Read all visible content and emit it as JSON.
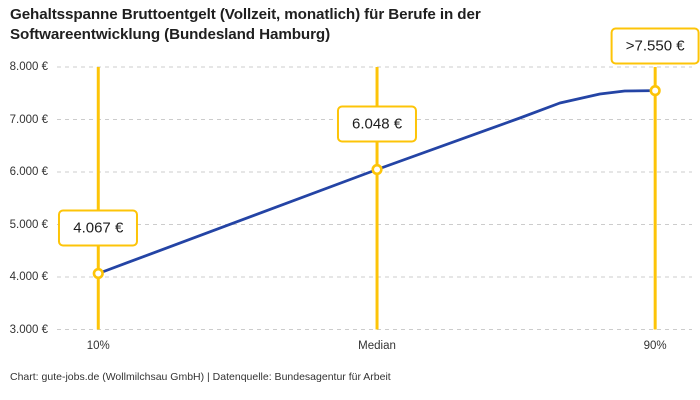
{
  "title": "Gehaltsspanne Bruttoentgelt (Vollzeit, monatlich) für Berufe in der Softwareentwicklung (Bundesland Hamburg)",
  "footer": "Chart: gute-jobs.de (Wollmilchsau GmbH) | Datenquelle: Bundesagentur für Arbeit",
  "colors": {
    "accent_yellow": "#fdc408",
    "line_blue": "#2444a5",
    "grid_gray": "#cccccc",
    "text_dark": "#1f1f1f"
  },
  "chart_data": {
    "type": "line",
    "title": "Gehaltsspanne Bruttoentgelt (Vollzeit, monatlich) für Berufe in der Softwareentwicklung (Bundesland Hamburg)",
    "xlabel": "",
    "ylabel": "",
    "categories": [
      "10%",
      "Median",
      "90%"
    ],
    "values": [
      4067,
      6048,
      7550
    ],
    "value_labels": [
      "4.067 €",
      "6.048 €",
      ">7.550 €"
    ],
    "ylim": [
      3000,
      8000
    ],
    "y_ticks": [
      {
        "value": 8000,
        "label": "8.000 €"
      },
      {
        "value": 7000,
        "label": "7.000 €"
      },
      {
        "value": 6000,
        "label": "6.000 €"
      },
      {
        "value": 5000,
        "label": "5.000 €"
      },
      {
        "value": 4000,
        "label": "4.000 €"
      },
      {
        "value": 3000,
        "label": "3.000 €"
      }
    ],
    "grid": "horizontal-dashed",
    "legend": "none",
    "x_positions": [
      0.065,
      0.504,
      0.942
    ],
    "curve": [
      [
        0.065,
        4067
      ],
      [
        0.504,
        6048
      ],
      [
        0.729,
        7029
      ],
      [
        0.792,
        7314
      ],
      [
        0.855,
        7486
      ],
      [
        0.894,
        7543
      ],
      [
        0.942,
        7550
      ]
    ]
  }
}
